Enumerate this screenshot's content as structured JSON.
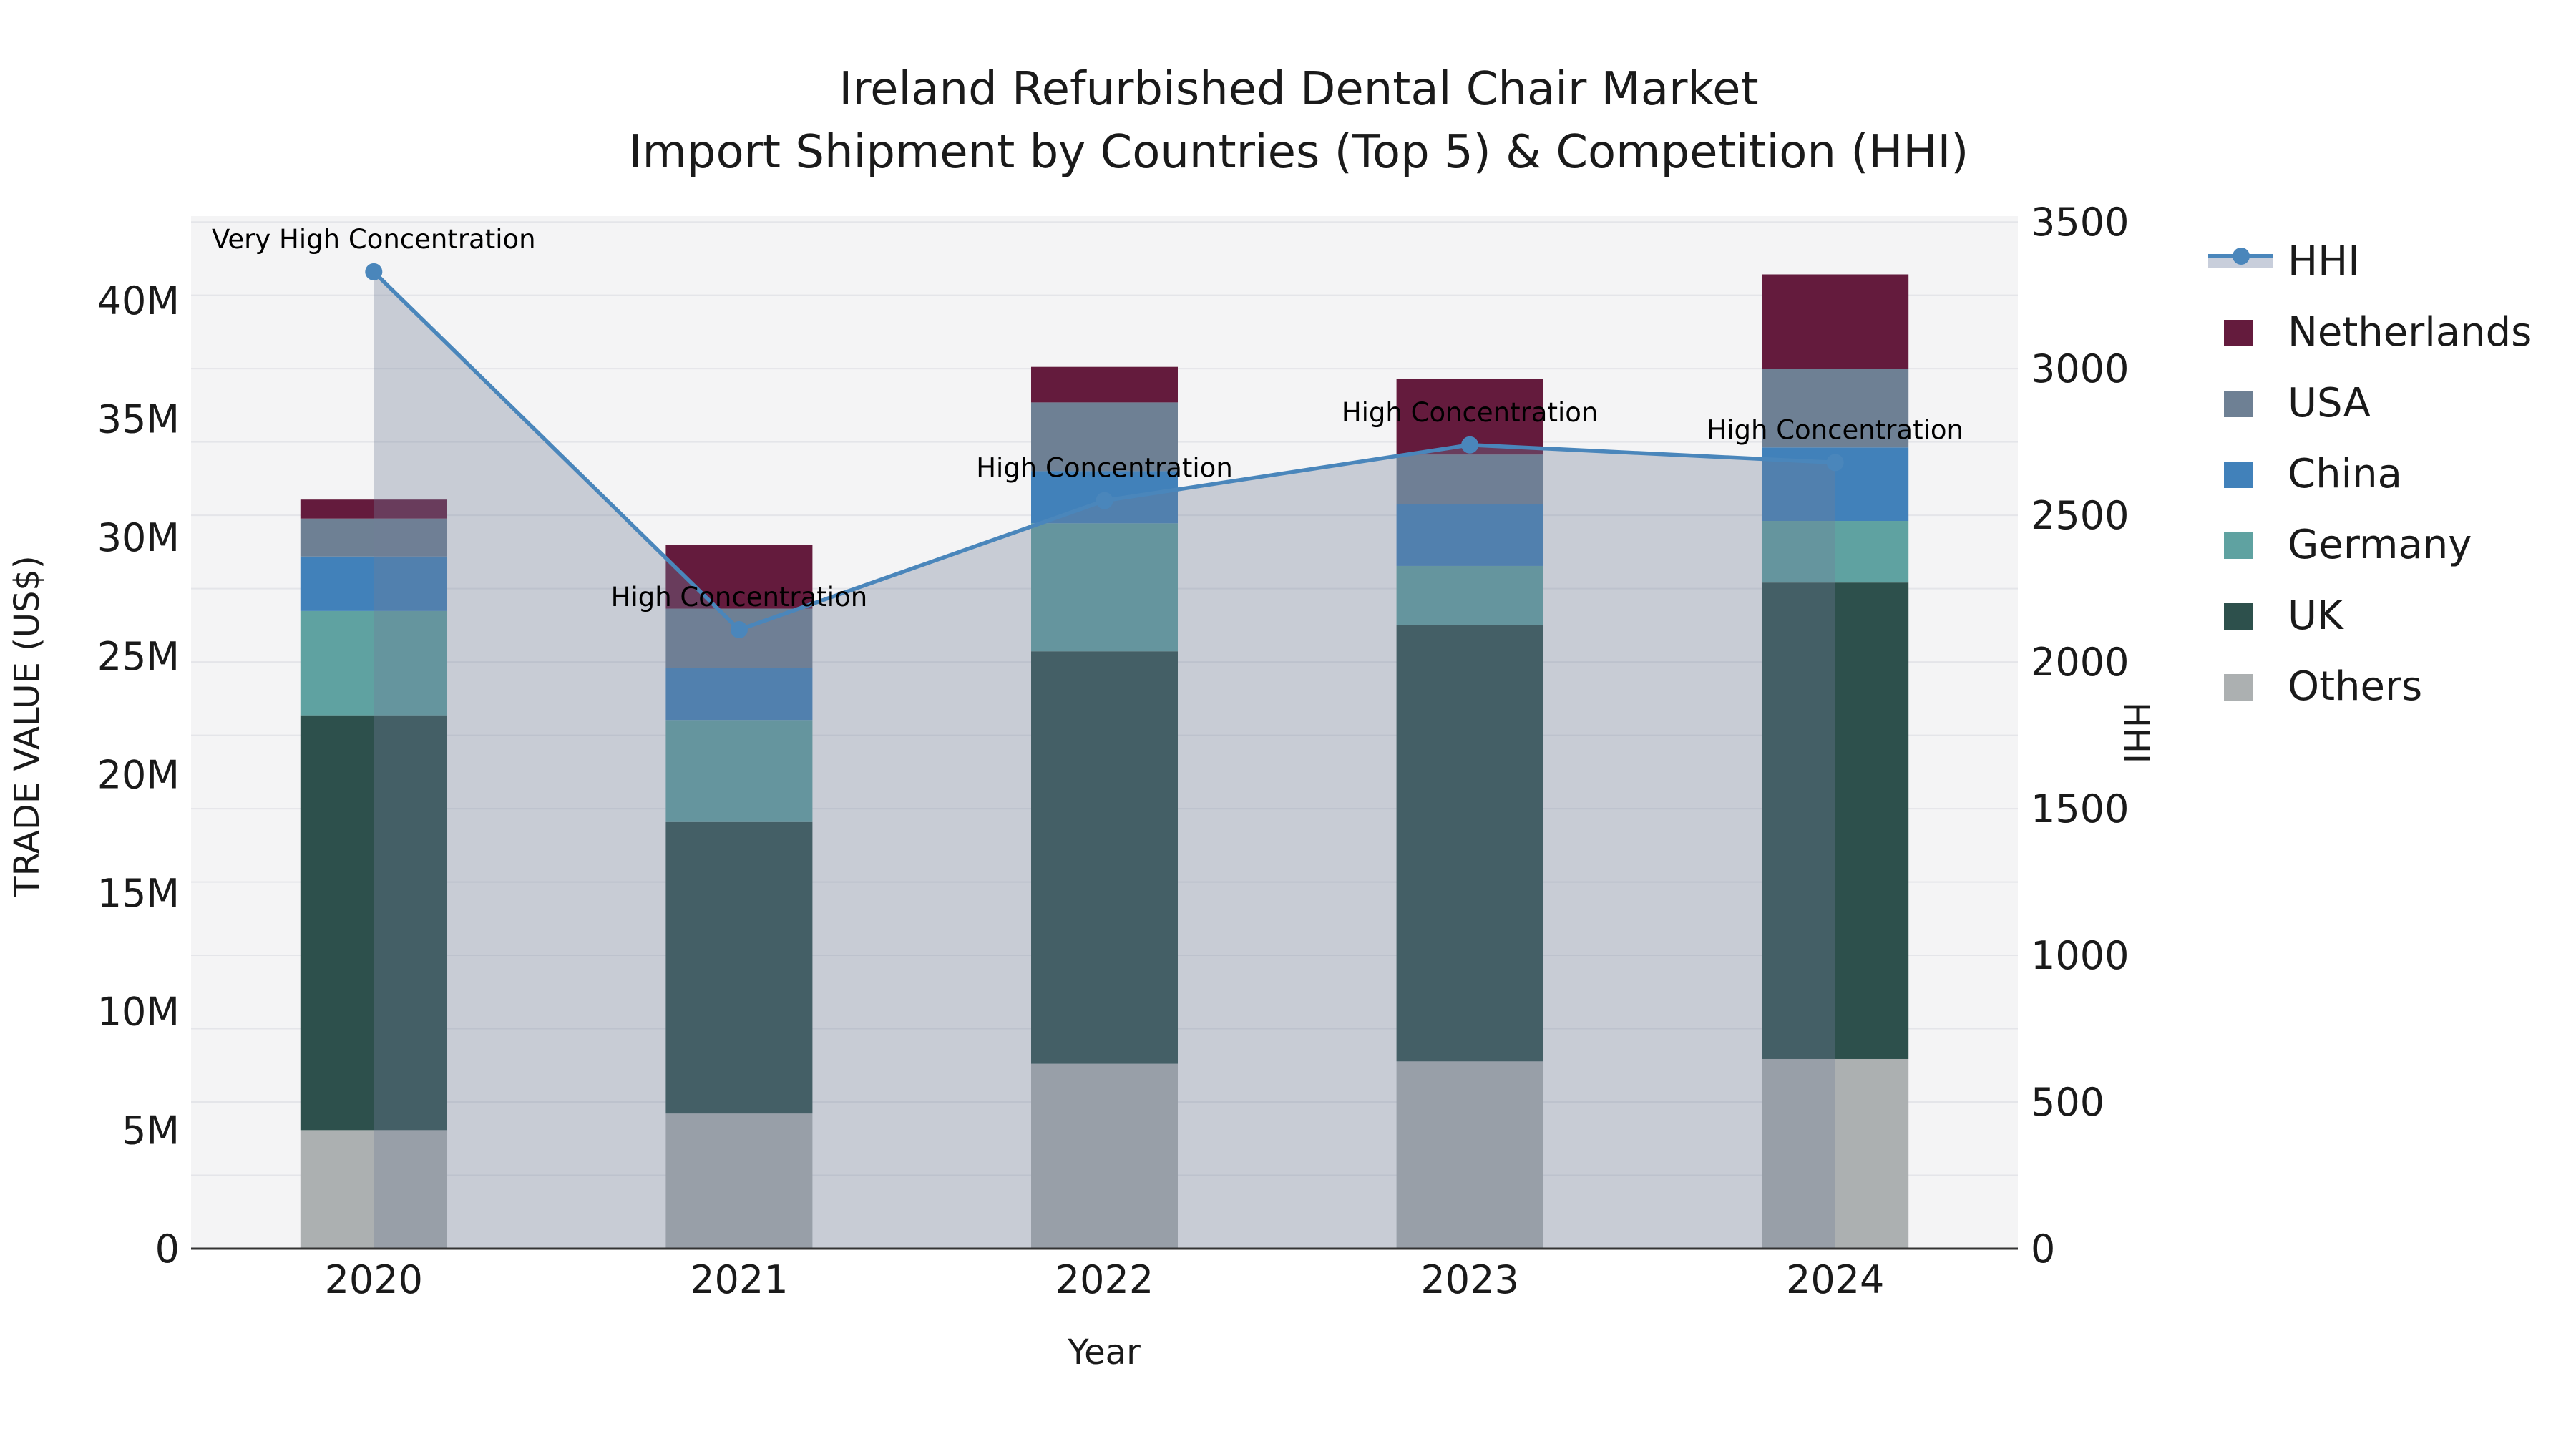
{
  "title": {
    "line1": "Ireland Refurbished Dental Chair Market",
    "line2": "Import Shipment by Countries (Top 5) & Competition (HHI)"
  },
  "axes": {
    "y_left_label": "TRADE VALUE (US$)",
    "y_right_label": "HHI",
    "x_label": "Year"
  },
  "colors": {
    "plot_bg": "#f4f4f5",
    "grid": "#e4e5e9",
    "spine": "#333333",
    "tick_text": "#1a1a1a",
    "annotation_text": "#000000"
  },
  "chart_data": {
    "type": "bar+line-dual-axis",
    "categories": [
      "2020",
      "2021",
      "2022",
      "2023",
      "2024"
    ],
    "stack_order_note": "series listed bottom-to-top of the stacked bars, values in millions US$",
    "series": [
      {
        "name": "Others",
        "color": "#acb0b1",
        "values_musd": [
          5.0,
          5.7,
          7.8,
          7.9,
          8.0
        ]
      },
      {
        "name": "UK",
        "color": "#2d504c",
        "values_musd": [
          17.5,
          12.3,
          17.4,
          18.4,
          20.1
        ]
      },
      {
        "name": "Germany",
        "color": "#5fa2a1",
        "values_musd": [
          4.4,
          4.3,
          5.4,
          2.5,
          2.6
        ]
      },
      {
        "name": "China",
        "color": "#4181ba",
        "values_musd": [
          2.3,
          2.2,
          2.2,
          2.6,
          3.1
        ]
      },
      {
        "name": "USA",
        "color": "#6e8094",
        "values_musd": [
          1.6,
          2.5,
          2.9,
          2.1,
          3.3
        ]
      },
      {
        "name": "Netherlands",
        "color": "#641b3d",
        "values_musd": [
          0.8,
          2.7,
          1.5,
          3.2,
          4.0
        ]
      }
    ],
    "hhi": {
      "name": "HHI",
      "color": "#4a86bb",
      "area_fill": "rgba(115,127,152,0.34)",
      "legend_band_color": "#c8cedb",
      "values": [
        3330,
        2110,
        2550,
        2740,
        2680
      ]
    },
    "annotations": [
      "Very High Concentration",
      "High Concentration",
      "High Concentration",
      "High Concentration",
      "High Concentration"
    ],
    "y_left": {
      "tick_labels": [
        "0",
        "5M",
        "10M",
        "15M",
        "20M",
        "25M",
        "30M",
        "35M",
        "40M"
      ],
      "tick_values_musd": [
        0,
        5,
        10,
        15,
        20,
        25,
        30,
        35,
        40
      ],
      "max_musd": 43.56
    },
    "y_right": {
      "tick_labels": [
        "0",
        "500",
        "1000",
        "1500",
        "2000",
        "2500",
        "3000",
        "3500"
      ],
      "tick_values": [
        0,
        500,
        1000,
        1500,
        2000,
        2500,
        3000,
        3500
      ],
      "max": 3520,
      "grid_step": 250
    },
    "legend": [
      "HHI",
      "Netherlands",
      "USA",
      "China",
      "Germany",
      "UK",
      "Others"
    ],
    "grid": true,
    "legend_position": "upper-right-outside"
  }
}
